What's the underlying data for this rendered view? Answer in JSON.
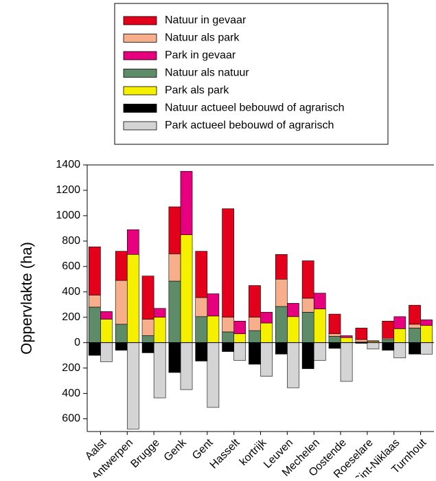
{
  "chart_data": {
    "type": "stacked_bar",
    "y_label": "Oppervlakte (ha)",
    "categories": [
      "Aalst",
      "Antwerpen",
      "Brugge",
      "Genk",
      "Gent",
      "Hasselt",
      "kortrijk",
      "Leuven",
      "Mechelen",
      "Oostende",
      "Roeselare",
      "Sint-Niklaas",
      "Turnhout"
    ],
    "series": [
      {
        "name": "Natuur in gevaar",
        "color": "#e3001b",
        "stack": 0,
        "values": [
          380,
          230,
          340,
          370,
          365,
          855,
          250,
          195,
          295,
          155,
          90,
          135,
          150
        ]
      },
      {
        "name": "Natuur als park",
        "color": "#f7ae8b",
        "stack": 0,
        "values": [
          95,
          345,
          130,
          215,
          150,
          115,
          105,
          215,
          110,
          20,
          20,
          10,
          30
        ]
      },
      {
        "name": "Park in gevaar",
        "color": "#e6007e",
        "stack": 1,
        "values": [
          60,
          195,
          70,
          500,
          175,
          100,
          85,
          105,
          125,
          15,
          5,
          95,
          45
        ]
      },
      {
        "name": "Natuur als natuur",
        "color": "#5e8b68",
        "stack": 0,
        "values": [
          280,
          145,
          55,
          485,
          205,
          85,
          95,
          285,
          240,
          50,
          5,
          25,
          115
        ]
      },
      {
        "name": "Park als park",
        "color": "#f5f000",
        "stack": 1,
        "values": [
          185,
          695,
          200,
          850,
          210,
          70,
          155,
          205,
          265,
          40,
          10,
          110,
          135
        ]
      },
      {
        "name": "Natuur actueel bebouwd of agrarisch",
        "color": "#000000",
        "stack": 0,
        "values": [
          -100,
          -60,
          -80,
          -235,
          -145,
          -70,
          -170,
          -90,
          -205,
          -45,
          -5,
          -60,
          -90
        ]
      },
      {
        "name": "Park actueel bebouwd of agrarisch",
        "color": "#d4d4d4",
        "stack": 1,
        "values": [
          -150,
          -680,
          -435,
          -370,
          -510,
          -140,
          -265,
          -355,
          -140,
          -305,
          -50,
          -120,
          -90
        ]
      }
    ],
    "ylim": [
      -700,
      1400
    ],
    "yticks": [
      1400,
      1200,
      1000,
      800,
      600,
      400,
      200,
      0,
      {
        "value": -200,
        "label": "200"
      },
      {
        "value": -400,
        "label": "400"
      },
      {
        "value": -600,
        "label": "600"
      }
    ]
  }
}
